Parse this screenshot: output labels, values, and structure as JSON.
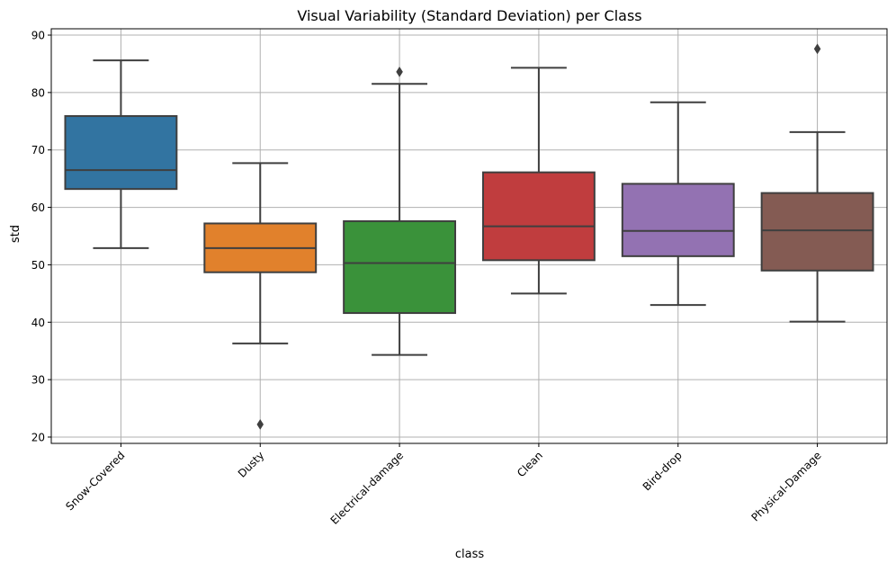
{
  "chart_data": {
    "type": "box",
    "title": "Visual Variability (Standard Deviation) per Class",
    "xlabel": "class",
    "ylabel": "std",
    "ylim": [
      18.9,
      91.1
    ],
    "yticks": [
      20,
      30,
      40,
      50,
      60,
      70,
      80,
      90
    ],
    "grid": true,
    "categories": [
      "Snow-Covered",
      "Dusty",
      "Electrical-damage",
      "Clean",
      "Bird-drop",
      "Physical-Damage"
    ],
    "colors": [
      "#3274a1",
      "#e1812c",
      "#3a923a",
      "#c03d3e",
      "#9372b2",
      "#845b53"
    ],
    "boxes": [
      {
        "whisker_low": 52.9,
        "q1": 63.2,
        "median": 66.5,
        "q3": 75.9,
        "whisker_high": 85.6,
        "outliers": []
      },
      {
        "whisker_low": 36.3,
        "q1": 48.7,
        "median": 52.9,
        "q3": 57.2,
        "whisker_high": 67.7,
        "outliers": [
          22.2
        ]
      },
      {
        "whisker_low": 34.3,
        "q1": 41.6,
        "median": 50.3,
        "q3": 57.6,
        "whisker_high": 81.5,
        "outliers": [
          83.6
        ]
      },
      {
        "whisker_low": 45.0,
        "q1": 50.8,
        "median": 56.7,
        "q3": 66.1,
        "whisker_high": 84.3,
        "outliers": []
      },
      {
        "whisker_low": 43.0,
        "q1": 51.5,
        "median": 55.9,
        "q3": 64.1,
        "whisker_high": 78.3,
        "outliers": []
      },
      {
        "whisker_low": 40.1,
        "q1": 49.0,
        "median": 56.0,
        "q3": 62.5,
        "whisker_high": 73.1,
        "outliers": [
          87.6
        ]
      }
    ]
  }
}
